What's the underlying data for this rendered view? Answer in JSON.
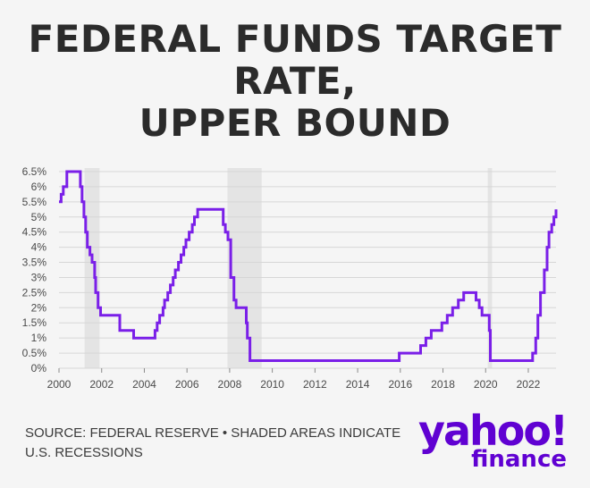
{
  "title_lines": [
    "FEDERAL FUNDS TARGET",
    "RATE,",
    "UPPER BOUND"
  ],
  "source": "SOURCE: FEDERAL RESERVE • SHADED AREAS INDICATE U.S. RECESSIONS",
  "logo": {
    "main": "yahoo!",
    "sub": "finance"
  },
  "colors": {
    "line": "#7a1fe8",
    "recession": "#e4e4e4",
    "grid": "#d6d6d6",
    "text": "#4a4a4a"
  },
  "chart_data": {
    "type": "line",
    "title": "FEDERAL FUNDS TARGET RATE, UPPER BOUND",
    "xlabel": "",
    "ylabel": "",
    "xlim": [
      2000,
      2023.3
    ],
    "ylim": [
      0,
      6.5
    ],
    "grid": true,
    "x_ticks": [
      "2000",
      "2002",
      "2004",
      "2006",
      "2008",
      "2010",
      "2012",
      "2014",
      "2016",
      "2018",
      "2020",
      "2022"
    ],
    "x_tick_values": [
      2000,
      2002,
      2004,
      2006,
      2008,
      2010,
      2012,
      2014,
      2016,
      2018,
      2020,
      2022
    ],
    "y_ticks": [
      "0%",
      "0.5%",
      "1%",
      "1.5%",
      "2%",
      "2.5%",
      "3%",
      "3.5%",
      "4%",
      "4.5%",
      "5%",
      "5.5%",
      "6%",
      "6.5%"
    ],
    "y_tick_values": [
      0,
      0.5,
      1,
      1.5,
      2,
      2.5,
      3,
      3.5,
      4,
      4.5,
      5,
      5.5,
      6,
      6.5
    ],
    "recessions": [
      [
        2001.2,
        2001.9
      ],
      [
        2007.9,
        2009.5
      ],
      [
        2020.1,
        2020.3
      ]
    ],
    "series": [
      {
        "name": "",
        "points": [
          [
            2000.0,
            5.5
          ],
          [
            2000.1,
            5.75
          ],
          [
            2000.2,
            6.0
          ],
          [
            2000.37,
            6.5
          ],
          [
            2001.0,
            6.0
          ],
          [
            2001.08,
            5.5
          ],
          [
            2001.17,
            5.0
          ],
          [
            2001.25,
            4.5
          ],
          [
            2001.33,
            4.0
          ],
          [
            2001.45,
            3.75
          ],
          [
            2001.55,
            3.5
          ],
          [
            2001.67,
            3.0
          ],
          [
            2001.72,
            2.5
          ],
          [
            2001.83,
            2.0
          ],
          [
            2001.95,
            1.75
          ],
          [
            2002.85,
            1.25
          ],
          [
            2003.5,
            1.0
          ],
          [
            2004.5,
            1.25
          ],
          [
            2004.6,
            1.5
          ],
          [
            2004.72,
            1.75
          ],
          [
            2004.88,
            2.0
          ],
          [
            2004.95,
            2.25
          ],
          [
            2005.1,
            2.5
          ],
          [
            2005.22,
            2.75
          ],
          [
            2005.35,
            3.0
          ],
          [
            2005.45,
            3.25
          ],
          [
            2005.6,
            3.5
          ],
          [
            2005.72,
            3.75
          ],
          [
            2005.85,
            4.0
          ],
          [
            2005.95,
            4.25
          ],
          [
            2006.1,
            4.5
          ],
          [
            2006.25,
            4.75
          ],
          [
            2006.35,
            5.0
          ],
          [
            2006.5,
            5.25
          ],
          [
            2007.7,
            4.75
          ],
          [
            2007.8,
            4.5
          ],
          [
            2007.92,
            4.25
          ],
          [
            2008.05,
            3.0
          ],
          [
            2008.1,
            3.0
          ],
          [
            2008.2,
            2.25
          ],
          [
            2008.3,
            2.0
          ],
          [
            2008.78,
            1.5
          ],
          [
            2008.83,
            1.0
          ],
          [
            2008.95,
            0.25
          ],
          [
            2015.95,
            0.5
          ],
          [
            2016.95,
            0.75
          ],
          [
            2017.2,
            1.0
          ],
          [
            2017.45,
            1.25
          ],
          [
            2017.95,
            1.5
          ],
          [
            2018.2,
            1.75
          ],
          [
            2018.45,
            2.0
          ],
          [
            2018.72,
            2.25
          ],
          [
            2018.97,
            2.5
          ],
          [
            2019.55,
            2.25
          ],
          [
            2019.7,
            2.0
          ],
          [
            2019.83,
            1.75
          ],
          [
            2020.17,
            1.25
          ],
          [
            2020.22,
            0.25
          ],
          [
            2022.2,
            0.5
          ],
          [
            2022.35,
            1.0
          ],
          [
            2022.45,
            1.75
          ],
          [
            2022.57,
            2.5
          ],
          [
            2022.75,
            3.25
          ],
          [
            2022.88,
            4.0
          ],
          [
            2022.97,
            4.5
          ],
          [
            2023.1,
            4.75
          ],
          [
            2023.2,
            5.0
          ],
          [
            2023.3,
            5.25
          ]
        ]
      }
    ]
  }
}
